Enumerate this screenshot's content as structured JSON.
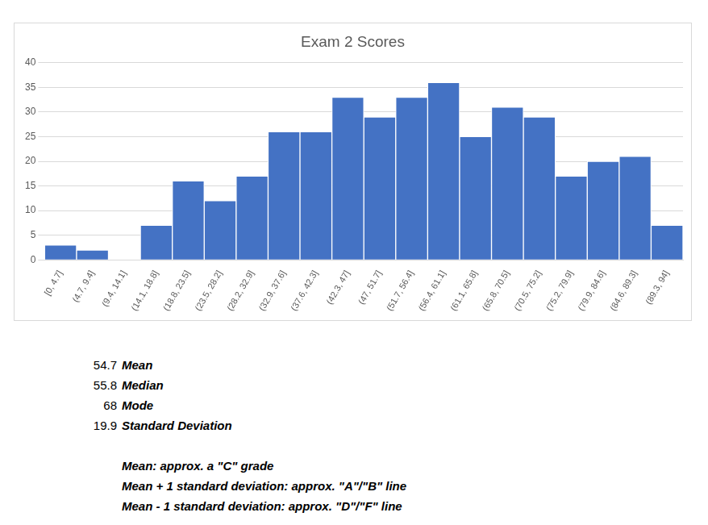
{
  "chart_data": {
    "type": "bar",
    "title": "Exam 2 Scores",
    "categories": [
      "[0, 4.7]",
      "(4.7, 9.4]",
      "(9.4, 14.1]",
      "(14.1, 18.8]",
      "(18.8, 23.5]",
      "(23.5, 28.2]",
      "(28.2, 32.9]",
      "(32.9, 37.6]",
      "(37.6, 42.3]",
      "(42.3, 47]",
      "(47, 51.7]",
      "(51.7, 56.4]",
      "(56.4, 61.1]",
      "(61.1, 65.8]",
      "(65.8, 70.5]",
      "(70.5, 75.2]",
      "(75.2, 79.9]",
      "(79.9, 84.6]",
      "(84.6, 89.3]",
      "(89.3, 94]"
    ],
    "values": [
      3,
      2,
      0,
      7,
      16,
      12,
      17,
      26,
      26,
      33,
      29,
      33,
      36,
      25,
      31,
      29,
      17,
      20,
      21,
      7
    ],
    "color": "#4472c4",
    "ylim": [
      0,
      40
    ],
    "yticks": [
      0,
      5,
      10,
      15,
      20,
      25,
      30,
      35,
      40
    ],
    "grid": true,
    "statistics": [
      {
        "value": 54.7,
        "label": "Mean"
      },
      {
        "value": 55.8,
        "label": "Median"
      },
      {
        "value": 68,
        "label": "Mode"
      },
      {
        "value": 19.9,
        "label": "Standard Deviation"
      }
    ],
    "annotations": [
      "Mean: approx. a \"C\" grade",
      "Mean + 1 standard deviation: approx. \"A\"/\"B\" line",
      "Mean - 1 standard deviation: approx. \"D\"/\"F\" line"
    ]
  }
}
